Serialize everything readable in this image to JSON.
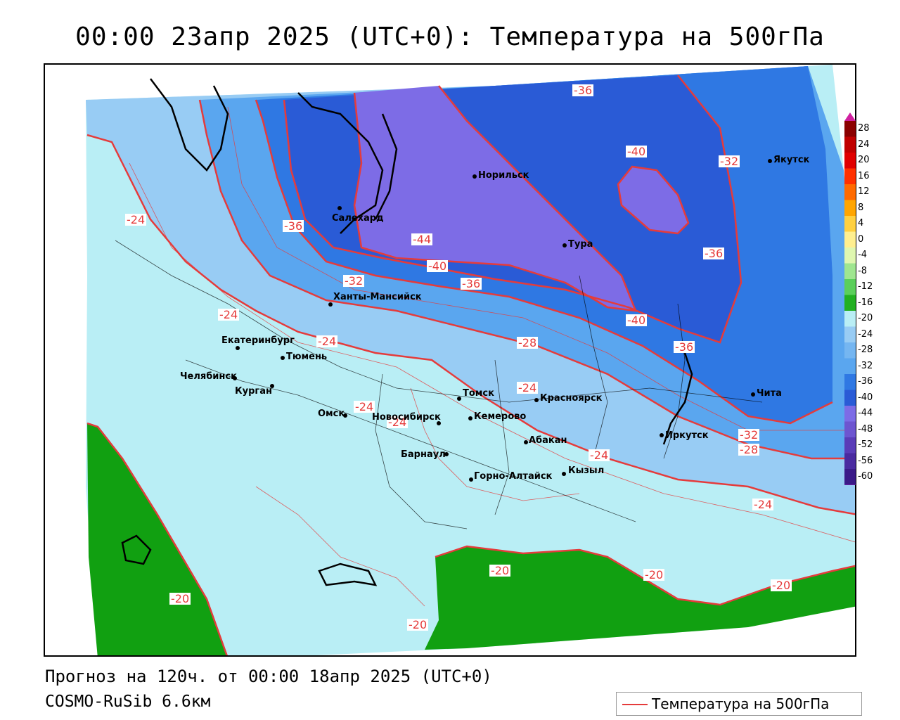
{
  "title": "00:00 23апр 2025 (UTC+0): Температура на 500гПа",
  "footer": {
    "forecast": "Прогноз на 120ч. от 00:00 18апр 2025 (UTC+0)",
    "model": "COSMO-RuSib 6.6км"
  },
  "legend": {
    "label": "Температура на 500гПа",
    "line_color": "#e53b3b"
  },
  "colors": {
    "green": "#11a011",
    "pale_blue": "#b9eef5",
    "light_blue": "#98ccf4",
    "mid_blue": "#5aa6ef",
    "blue": "#2f78e3",
    "deep_blue": "#2a5bd6",
    "violet": "#7d6ce6",
    "contour": "#e53b3b"
  },
  "color_scale": {
    "ticks": [
      "28",
      "24",
      "20",
      "16",
      "12",
      "8",
      "4",
      "0",
      "-4",
      "-8",
      "-12",
      "-16",
      "-20",
      "-24",
      "-28",
      "-32",
      "-36",
      "-40",
      "-44",
      "-48",
      "-52",
      "-56",
      "-60"
    ],
    "colors": [
      "#8b0000",
      "#c00000",
      "#e00000",
      "#ff3000",
      "#ff6a00",
      "#ffa500",
      "#ffd040",
      "#ffef8f",
      "#dff7b0",
      "#9fe690",
      "#5bcf5b",
      "#22b022",
      "#b9eef5",
      "#98ccf4",
      "#75b6f1",
      "#5aa6ef",
      "#2f78e3",
      "#2a5bd6",
      "#7d6ce6",
      "#6d55d0",
      "#5a3cb8",
      "#4a2aa0",
      "#3a1a88"
    ]
  },
  "cities": [
    {
      "name": "Якутск"
    },
    {
      "name": "Норильск"
    },
    {
      "name": "Салехард"
    },
    {
      "name": "Тура"
    },
    {
      "name": "Ханты-Мансийск"
    },
    {
      "name": "Екатеринбург"
    },
    {
      "name": "Тюмень"
    },
    {
      "name": "Челябинск"
    },
    {
      "name": "Курган"
    },
    {
      "name": "Омск"
    },
    {
      "name": "Новосибирск"
    },
    {
      "name": "Томск"
    },
    {
      "name": "Кемерово"
    },
    {
      "name": "Красноярск"
    },
    {
      "name": "Абакан"
    },
    {
      "name": "Барнаул"
    },
    {
      "name": "Горно-Алтайск"
    },
    {
      "name": "Кызыл"
    },
    {
      "name": "Иркутск"
    },
    {
      "name": "Чита"
    }
  ],
  "contour_labels": [
    "-36",
    "-40",
    "-32",
    "-44",
    "-40",
    "-36",
    "-32",
    "-36",
    "-40",
    "-36",
    "-24",
    "-24",
    "-24",
    "-28",
    "-24",
    "-24",
    "-24",
    "-32",
    "-36",
    "-24",
    "-20",
    "-20",
    "-20",
    "-20",
    "-20",
    "-28",
    "-24"
  ]
}
